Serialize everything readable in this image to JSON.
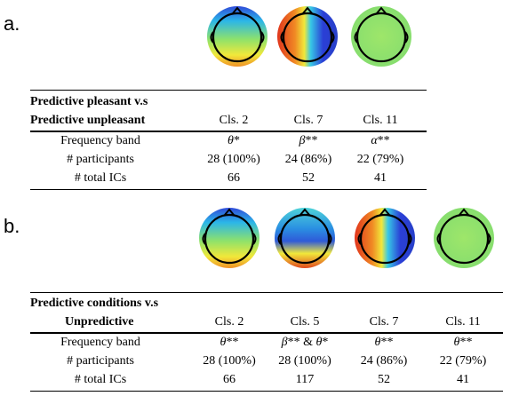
{
  "panel_a": {
    "label": "a.",
    "header_line1": "Predictive pleasant v.s",
    "header_line2": "Predictive unpleasant",
    "columns": [
      "Cls. 2",
      "Cls. 7",
      "Cls. 11"
    ],
    "rows": [
      {
        "label": "Frequency band",
        "cells": [
          {
            "sym": "θ",
            "sig": "*"
          },
          {
            "sym": "β",
            "sig": "**"
          },
          {
            "sym": "α",
            "sig": "**"
          }
        ]
      },
      {
        "label": "# participants",
        "values": [
          "28 (100%)",
          "24 (86%)",
          "22 (79%)"
        ]
      },
      {
        "label": "# total ICs",
        "values": [
          "66",
          "52",
          "41"
        ]
      }
    ]
  },
  "panel_b": {
    "label": "b.",
    "header_line1": "Predictive conditions v.s",
    "header_line2": "Unpredictive",
    "columns": [
      "Cls. 2",
      "Cls. 5",
      "Cls. 7",
      "Cls. 11"
    ],
    "rows": [
      {
        "label": "Frequency band",
        "cells": [
          {
            "sym": "θ",
            "sig": "**"
          },
          {
            "sym": "β",
            "sig": "** & ",
            "sym2": "θ",
            "sig2": "*"
          },
          {
            "sym": "θ",
            "sig": "**"
          },
          {
            "sym": "θ",
            "sig": "**"
          }
        ]
      },
      {
        "label": "# participants",
        "values": [
          "28 (100%)",
          "28 (100%)",
          "24 (86%)",
          "22 (79%)"
        ]
      },
      {
        "label": "# total ICs",
        "values": [
          "66",
          "117",
          "52",
          "41"
        ]
      }
    ]
  },
  "colors": {
    "map_blue": "#2a3fd6",
    "map_cyan": "#24c8e6",
    "map_green": "#8fe26a",
    "map_yellow": "#f5ee3a",
    "map_orange": "#f08a24",
    "map_red": "#d92a1a"
  },
  "icons": [
    "scalp-topoplot-icon"
  ]
}
